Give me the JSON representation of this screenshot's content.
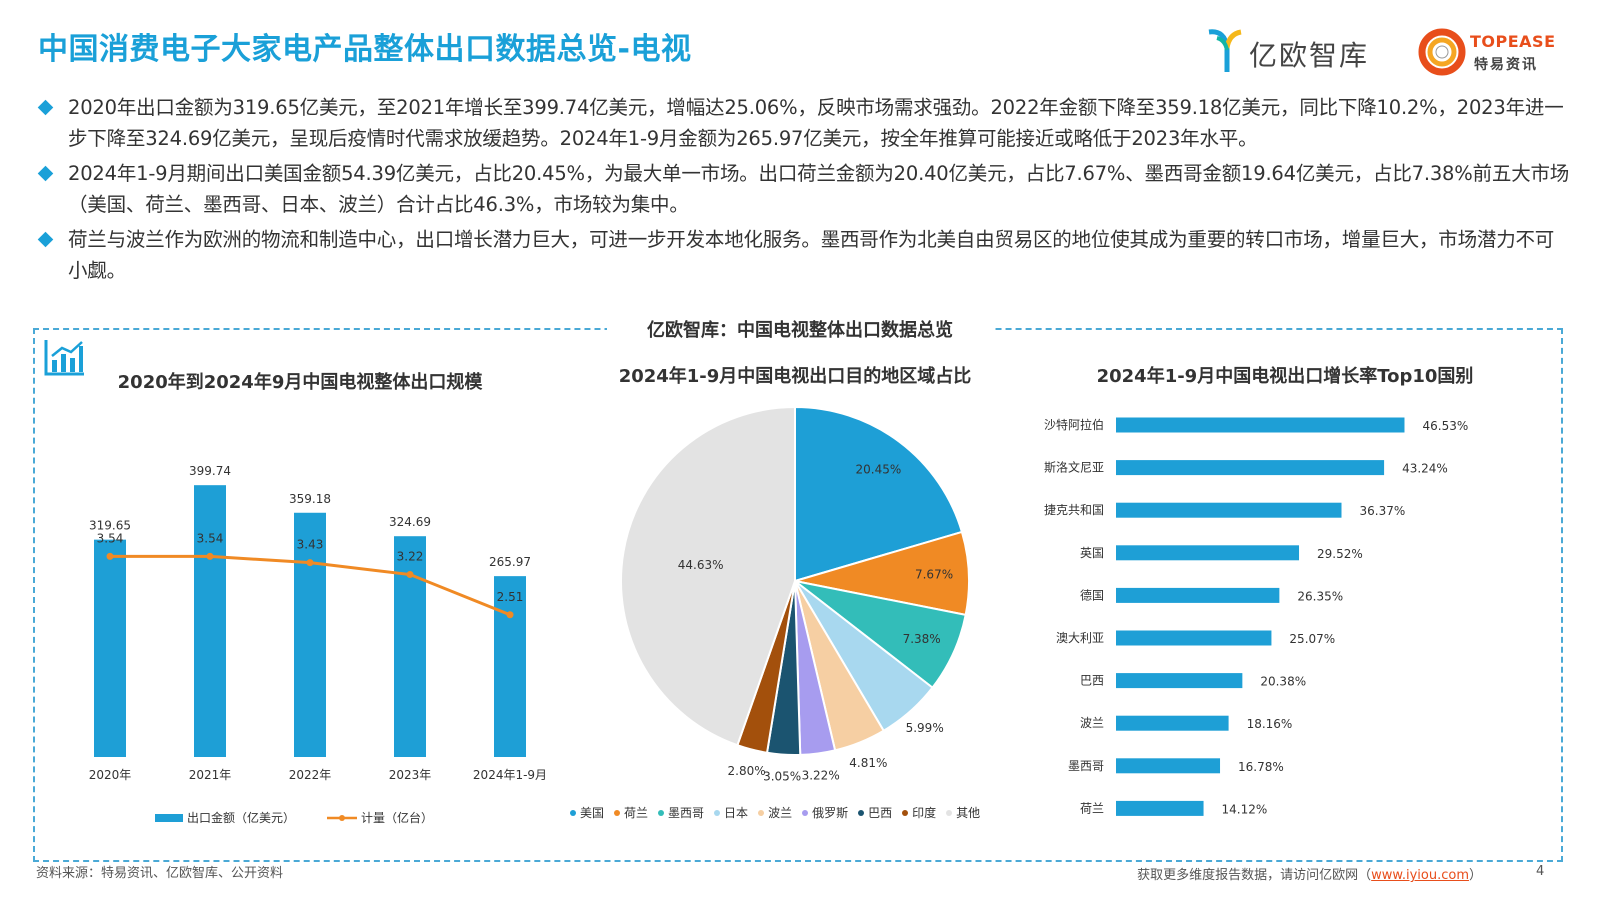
{
  "header": {
    "title": "中国消费电子大家电产品整体出口数据总览-电视",
    "brand_yiou": "亿欧智库",
    "brand_topease_en": "TOPEASE",
    "brand_topease_cn": "特易资讯"
  },
  "bullets": [
    "2020年出口金额为319.65亿美元，至2021年增长至399.74亿美元，增幅达25.06%，反映市场需求强劲。2022年金额下降至359.18亿美元，同比下降10.2%，2023年进一步下降至324.69亿美元，呈现后疫情时代需求放缓趋势。2024年1-9月金额为265.97亿美元，按全年推算可能接近或略低于2023年水平。",
    "2024年1-9月期间出口美国金额54.39亿美元，占比20.45%，为最大单一市场。出口荷兰金额为20.40亿美元，占比7.67%、墨西哥金额19.64亿美元，占比7.38%前五大市场（美国、荷兰、墨西哥、日本、波兰）合计占比46.3%，市场较为集中。",
    "荷兰与波兰作为欧洲的物流和制造中心，出口增长潜力巨大，可进一步开发本地化服务。墨西哥作为北美自由贸易区的地位使其成为重要的转口市场，增量巨大，市场潜力不可小觑。"
  ],
  "panel_title": "亿欧智库：中国电视整体出口数据总览",
  "chart_data": [
    {
      "type": "bar",
      "title": "2020年到2024年9月中国电视整体出口规模",
      "categories": [
        "2020年",
        "2021年",
        "2022年",
        "2023年",
        "2024年1-9月"
      ],
      "series": [
        {
          "name": "出口金额（亿美元）",
          "type": "bar",
          "color": "#1e9fd6",
          "values": [
            319.65,
            399.74,
            359.18,
            324.69,
            265.97
          ]
        },
        {
          "name": "计量（亿台）",
          "type": "line",
          "color": "#f08a24",
          "values": [
            3.54,
            3.54,
            3.43,
            3.22,
            2.51
          ]
        }
      ],
      "ylim_bar": [
        0,
        500
      ],
      "ylim_line": [
        0,
        6
      ],
      "grid": false,
      "legend": "bottom"
    },
    {
      "type": "pie",
      "title": "2024年1-9月中国电视出口目的地区域占比",
      "slices": [
        {
          "label": "美国",
          "value": 20.45,
          "display": "20.45%",
          "color": "#1e9fd6"
        },
        {
          "label": "荷兰",
          "value": 7.67,
          "display": "7.67%",
          "color": "#f08a24"
        },
        {
          "label": "墨西哥",
          "value": 7.38,
          "display": "7.38%",
          "color": "#33bdb9"
        },
        {
          "label": "日本",
          "value": 5.99,
          "display": "5.99%",
          "color": "#a8d8ef"
        },
        {
          "label": "波兰",
          "value": 4.81,
          "display": "4.81%",
          "color": "#f6cfa3"
        },
        {
          "label": "俄罗斯",
          "value": 3.22,
          "display": "3.22%",
          "color": "#a79cef"
        },
        {
          "label": "巴西",
          "value": 3.05,
          "display": "3.05%",
          "color": "#1b5470"
        },
        {
          "label": "印度",
          "value": 2.8,
          "display": "2.80%",
          "color": "#a3500c"
        },
        {
          "label": "其他",
          "value": 44.63,
          "display": "44.63%",
          "color": "#e3e3e3"
        }
      ],
      "legend": "bottom"
    },
    {
      "type": "bar",
      "orientation": "horizontal",
      "title": "2024年1-9月中国电视出口增长率Top10国别",
      "categories": [
        "沙特阿拉伯",
        "斯洛文尼亚",
        "捷克共和国",
        "英国",
        "德国",
        "澳大利亚",
        "巴西",
        "波兰",
        "墨西哥",
        "荷兰"
      ],
      "values": [
        46.53,
        43.24,
        36.37,
        29.52,
        26.35,
        25.07,
        20.38,
        18.16,
        16.78,
        14.12
      ],
      "labels": [
        "46.53%",
        "43.24%",
        "36.37%",
        "29.52%",
        "26.35%",
        "25.07%",
        "20.38%",
        "18.16%",
        "16.78%",
        "14.12%"
      ],
      "color": "#1e9fd6",
      "xlim": [
        0,
        50
      ]
    }
  ],
  "footer": {
    "source": "资料来源：特易资讯、亿欧智库、公开资料",
    "note_prefix": "获取更多维度报告数据，请访问亿欧网（",
    "note_link": "www.iyiou.com",
    "note_suffix": "）",
    "page": "4"
  },
  "colors": {
    "accent": "#1aa0d8",
    "orange": "#f08a24",
    "border": "#4aa9d6"
  }
}
